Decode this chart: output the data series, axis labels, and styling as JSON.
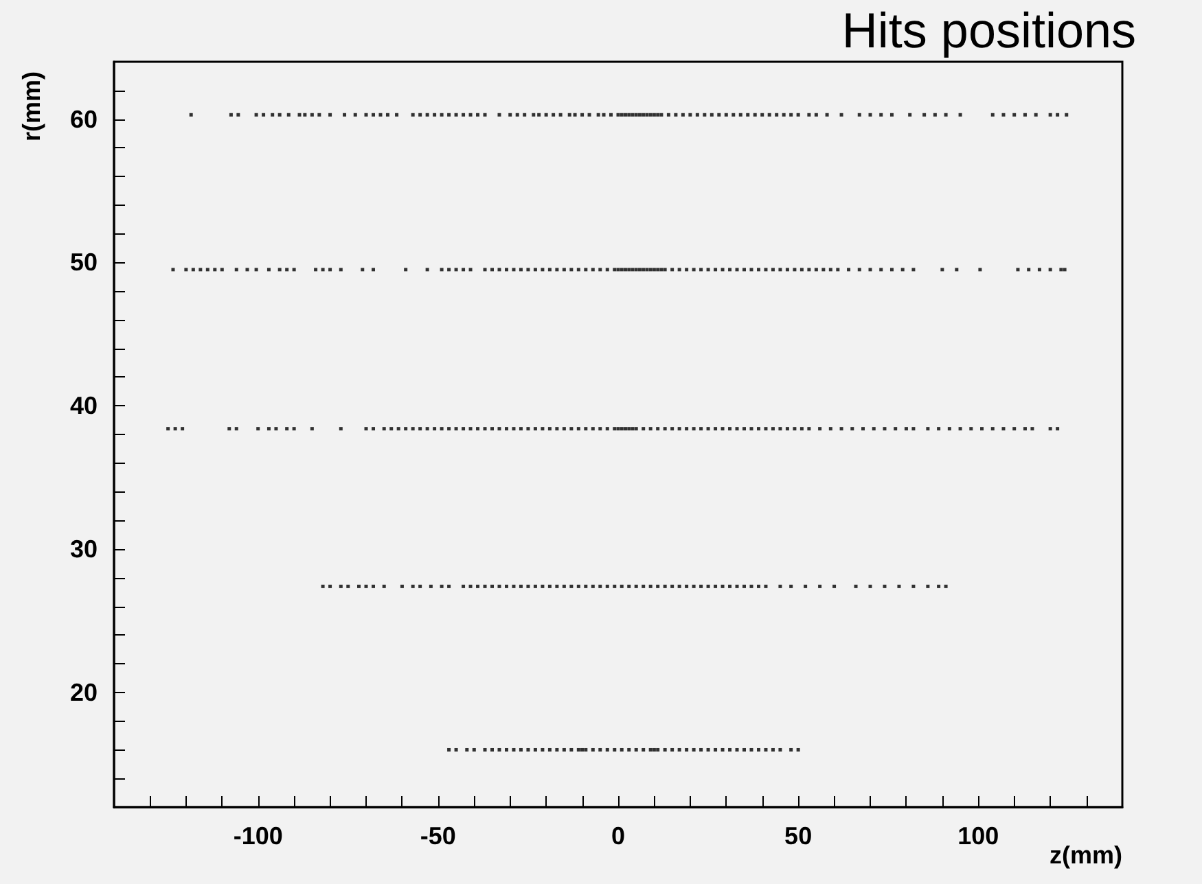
{
  "chart_data": {
    "type": "scatter",
    "title": "Hits positions",
    "xlabel": "z(mm)",
    "ylabel": "r(mm)",
    "xlim": [
      -140,
      140
    ],
    "ylim": [
      12,
      64
    ],
    "xticks": [
      {
        "value": -130,
        "label": null
      },
      {
        "value": -120,
        "label": null
      },
      {
        "value": -110,
        "label": null
      },
      -100,
      {
        "value": -90,
        "label": null
      },
      {
        "value": -80,
        "label": null
      },
      {
        "value": -70,
        "label": null
      },
      {
        "value": -60,
        "label": null
      },
      -50,
      {
        "value": -40,
        "label": null
      },
      {
        "value": -30,
        "label": null
      },
      {
        "value": -20,
        "label": null
      },
      {
        "value": -10,
        "label": null
      },
      0,
      {
        "value": 10,
        "label": null
      },
      {
        "value": 20,
        "label": null
      },
      {
        "value": 30,
        "label": null
      },
      {
        "value": 40,
        "label": null
      },
      50,
      {
        "value": 60,
        "label": null
      },
      {
        "value": 70,
        "label": null
      },
      {
        "value": 80,
        "label": null
      },
      {
        "value": 90,
        "label": null
      },
      100,
      {
        "value": 110,
        "label": null
      },
      {
        "value": 120,
        "label": null
      },
      {
        "value": 130,
        "label": null
      }
    ],
    "yticks": [
      {
        "value": 14,
        "label": null
      },
      {
        "value": 16,
        "label": null
      },
      {
        "value": 18,
        "label": null
      },
      20,
      {
        "value": 22,
        "label": null
      },
      {
        "value": 24,
        "label": null
      },
      {
        "value": 26,
        "label": null
      },
      {
        "value": 28,
        "label": null
      },
      30,
      {
        "value": 32,
        "label": null
      },
      {
        "value": 34,
        "label": null
      },
      {
        "value": 36,
        "label": null
      },
      {
        "value": 38,
        "label": null
      },
      40,
      {
        "value": 42,
        "label": null
      },
      {
        "value": 44,
        "label": null
      },
      {
        "value": 46,
        "label": null
      },
      {
        "value": 48,
        "label": null
      },
      50,
      {
        "value": 52,
        "label": null
      },
      {
        "value": 54,
        "label": null
      },
      {
        "value": 56,
        "label": null
      },
      {
        "value": 58,
        "label": null
      },
      60,
      {
        "value": 62,
        "label": null
      }
    ],
    "grid": false,
    "marker": "square",
    "series": [
      {
        "color": "#000000",
        "x": [
          -118.6,
          -107.5,
          -105.5,
          -100.5,
          -98.5,
          -96,
          -94,
          -91.5,
          -88.5,
          -87,
          -85,
          -83,
          -80,
          -76,
          -73,
          -70,
          -68,
          -66,
          -64,
          -61.5,
          -57,
          -55,
          -53,
          -51,
          -49,
          -47,
          -45,
          -43,
          -41,
          -39,
          -37,
          -33,
          -30,
          -28,
          -26,
          -23.5,
          -22,
          -20,
          -18,
          -16,
          -13.5,
          -12,
          -10,
          -8,
          -5.5,
          -4,
          -2,
          0,
          2,
          4,
          6,
          8,
          10,
          12,
          14,
          16,
          18,
          20,
          22,
          24,
          26,
          28,
          30,
          32,
          34,
          36,
          38,
          40,
          42,
          44,
          46,
          48,
          50,
          53,
          55,
          58,
          62,
          67,
          70,
          73,
          76,
          81,
          85,
          88,
          91,
          95,
          104,
          107,
          110,
          113,
          116,
          120,
          122,
          124.5,
          1,
          3,
          5,
          7,
          9,
          11
        ],
        "values": [
          60.3,
          60.3,
          60.3,
          60.3,
          60.3,
          60.3,
          60.3,
          60.3,
          60.3,
          60.3,
          60.3,
          60.3,
          60.3,
          60.3,
          60.3,
          60.3,
          60.3,
          60.3,
          60.3,
          60.3,
          60.3,
          60.3,
          60.3,
          60.3,
          60.3,
          60.3,
          60.3,
          60.3,
          60.3,
          60.3,
          60.3,
          60.3,
          60.3,
          60.3,
          60.3,
          60.3,
          60.3,
          60.3,
          60.3,
          60.3,
          60.3,
          60.3,
          60.3,
          60.3,
          60.3,
          60.3,
          60.3,
          60.3,
          60.3,
          60.3,
          60.3,
          60.3,
          60.3,
          60.3,
          60.3,
          60.3,
          60.3,
          60.3,
          60.3,
          60.3,
          60.3,
          60.3,
          60.3,
          60.3,
          60.3,
          60.3,
          60.3,
          60.3,
          60.3,
          60.3,
          60.3,
          60.3,
          60.3,
          60.3,
          60.3,
          60.3,
          60.3,
          60.3,
          60.3,
          60.3,
          60.3,
          60.3,
          60.3,
          60.3,
          60.3,
          60.3,
          60.3,
          60.3,
          60.3,
          60.3,
          60.3,
          60.3,
          60.3,
          60.3,
          60.3,
          60.3,
          60.3,
          60.3,
          60.3,
          60.3
        ]
      },
      {
        "color": "#000000",
        "x": [
          -123.6,
          -120,
          -118,
          -116,
          -114,
          -112,
          -110,
          -106,
          -103,
          -100.5,
          -97,
          -94,
          -92,
          -90,
          -84,
          -82,
          -80,
          -77,
          -71,
          -68,
          -59,
          -53,
          -49,
          -47,
          -45,
          -43,
          -41,
          -37,
          -35,
          -33,
          -31,
          -29,
          -27,
          -25,
          -23,
          -21,
          -19,
          -17,
          -15,
          -13,
          -11,
          -9,
          -7,
          -5,
          -3,
          -1,
          1,
          3,
          5,
          7,
          9,
          11,
          13,
          15,
          17,
          19,
          21,
          23,
          25,
          27,
          29,
          31,
          33,
          35,
          37,
          39,
          41,
          43,
          45,
          47,
          49,
          51,
          53,
          55,
          57,
          59,
          61,
          64,
          67,
          70,
          73,
          76,
          79,
          82,
          90,
          94,
          100.5,
          111,
          114,
          117,
          120,
          123,
          124,
          0,
          2,
          4,
          6,
          8,
          10,
          12
        ],
        "values": [
          49.5,
          49.5,
          49.5,
          49.5,
          49.5,
          49.5,
          49.5,
          49.5,
          49.5,
          49.5,
          49.5,
          49.5,
          49.5,
          49.5,
          49.5,
          49.5,
          49.5,
          49.5,
          49.5,
          49.5,
          49.5,
          49.5,
          49.5,
          49.5,
          49.5,
          49.5,
          49.5,
          49.5,
          49.5,
          49.5,
          49.5,
          49.5,
          49.5,
          49.5,
          49.5,
          49.5,
          49.5,
          49.5,
          49.5,
          49.5,
          49.5,
          49.5,
          49.5,
          49.5,
          49.5,
          49.5,
          49.5,
          49.5,
          49.5,
          49.5,
          49.5,
          49.5,
          49.5,
          49.5,
          49.5,
          49.5,
          49.5,
          49.5,
          49.5,
          49.5,
          49.5,
          49.5,
          49.5,
          49.5,
          49.5,
          49.5,
          49.5,
          49.5,
          49.5,
          49.5,
          49.5,
          49.5,
          49.5,
          49.5,
          49.5,
          49.5,
          49.5,
          49.5,
          49.5,
          49.5,
          49.5,
          49.5,
          49.5,
          49.5,
          49.5,
          49.5,
          49.5,
          49.5,
          49.5,
          49.5,
          49.5,
          49.5,
          49.5,
          49.5,
          49.5,
          49.5,
          49.5,
          49.5,
          49.5,
          49.5
        ]
      },
      {
        "color": "#000000",
        "x": [
          -125,
          -123,
          -121,
          -108,
          -106,
          -100,
          -97,
          -95,
          -92,
          -90,
          -85,
          -77,
          -70,
          -68,
          -65,
          -63,
          -61,
          -59,
          -57,
          -55,
          -53,
          -51,
          -49,
          -47,
          -45,
          -43,
          -41,
          -39,
          -37,
          -35,
          -33,
          -31,
          -29,
          -27,
          -25,
          -23,
          -21,
          -19,
          -17,
          -15,
          -13,
          -11,
          -9,
          -7,
          -5,
          -3,
          -1,
          1,
          3,
          5,
          7,
          9,
          11,
          13,
          15,
          17,
          19,
          21,
          23,
          25,
          27,
          29,
          31,
          33,
          35,
          37,
          39,
          41,
          43,
          45,
          47,
          49,
          51,
          53,
          56,
          59,
          62,
          65,
          68,
          71,
          74,
          77,
          80,
          82,
          86,
          89,
          92,
          95,
          98,
          101,
          104,
          107,
          110,
          113,
          115,
          120,
          122,
          0,
          2,
          4
        ],
        "values": [
          38.4,
          38.4,
          38.4,
          38.4,
          38.4,
          38.4,
          38.4,
          38.4,
          38.4,
          38.4,
          38.4,
          38.4,
          38.4,
          38.4,
          38.4,
          38.4,
          38.4,
          38.4,
          38.4,
          38.4,
          38.4,
          38.4,
          38.4,
          38.4,
          38.4,
          38.4,
          38.4,
          38.4,
          38.4,
          38.4,
          38.4,
          38.4,
          38.4,
          38.4,
          38.4,
          38.4,
          38.4,
          38.4,
          38.4,
          38.4,
          38.4,
          38.4,
          38.4,
          38.4,
          38.4,
          38.4,
          38.4,
          38.4,
          38.4,
          38.4,
          38.4,
          38.4,
          38.4,
          38.4,
          38.4,
          38.4,
          38.4,
          38.4,
          38.4,
          38.4,
          38.4,
          38.4,
          38.4,
          38.4,
          38.4,
          38.4,
          38.4,
          38.4,
          38.4,
          38.4,
          38.4,
          38.4,
          38.4,
          38.4,
          38.4,
          38.4,
          38.4,
          38.4,
          38.4,
          38.4,
          38.4,
          38.4,
          38.4,
          38.4,
          38.4,
          38.4,
          38.4,
          38.4,
          38.4,
          38.4,
          38.4,
          38.4,
          38.4,
          38.4,
          38.4,
          38.4,
          38.4,
          38.4,
          38.4,
          38.4
        ]
      },
      {
        "color": "#000000",
        "x": [
          -82,
          -80,
          -77,
          -75,
          -72,
          -70,
          -68,
          -65,
          -60,
          -57,
          -55,
          -52,
          -49,
          -47,
          -43,
          -41,
          -39,
          -37,
          -35,
          -33,
          -31,
          -29,
          -27,
          -25,
          -23,
          -21,
          -19,
          -17,
          -15,
          -13,
          -11,
          -9,
          -7,
          -5,
          -3,
          -1,
          1,
          3,
          5,
          7,
          9,
          11,
          13,
          15,
          17,
          19,
          21,
          23,
          25,
          27,
          29,
          31,
          33,
          35,
          37,
          39,
          41,
          45,
          48,
          52,
          56,
          60,
          66,
          70,
          74,
          78,
          82,
          86,
          89,
          91
        ],
        "values": [
          27.4,
          27.4,
          27.4,
          27.4,
          27.4,
          27.4,
          27.4,
          27.4,
          27.4,
          27.4,
          27.4,
          27.4,
          27.4,
          27.4,
          27.4,
          27.4,
          27.4,
          27.4,
          27.4,
          27.4,
          27.4,
          27.4,
          27.4,
          27.4,
          27.4,
          27.4,
          27.4,
          27.4,
          27.4,
          27.4,
          27.4,
          27.4,
          27.4,
          27.4,
          27.4,
          27.4,
          27.4,
          27.4,
          27.4,
          27.4,
          27.4,
          27.4,
          27.4,
          27.4,
          27.4,
          27.4,
          27.4,
          27.4,
          27.4,
          27.4,
          27.4,
          27.4,
          27.4,
          27.4,
          27.4,
          27.4,
          27.4,
          27.4,
          27.4,
          27.4,
          27.4,
          27.4,
          27.4,
          27.4,
          27.4,
          27.4,
          27.4,
          27.4,
          27.4,
          27.4
        ]
      },
      {
        "color": "#000000",
        "x": [
          -47,
          -45,
          -42,
          -40,
          -37,
          -35,
          -33,
          -31,
          -29,
          -27,
          -25,
          -23,
          -21,
          -19,
          -17,
          -15,
          -13,
          -11,
          -9,
          -7,
          -5,
          -3,
          -1,
          1,
          3,
          5,
          7,
          9,
          11,
          13,
          15,
          17,
          19,
          21,
          23,
          25,
          27,
          29,
          31,
          33,
          35,
          37,
          39,
          41,
          43,
          45,
          48,
          50,
          -10,
          10
        ],
        "values": [
          16,
          16,
          16,
          16,
          16,
          16,
          16,
          16,
          16,
          16,
          16,
          16,
          16,
          16,
          16,
          16,
          16,
          16,
          16,
          16,
          16,
          16,
          16,
          16,
          16,
          16,
          16,
          16,
          16,
          16,
          16,
          16,
          16,
          16,
          16,
          16,
          16,
          16,
          16,
          16,
          16,
          16,
          16,
          16,
          16,
          16,
          16,
          16,
          16,
          16
        ]
      }
    ]
  }
}
